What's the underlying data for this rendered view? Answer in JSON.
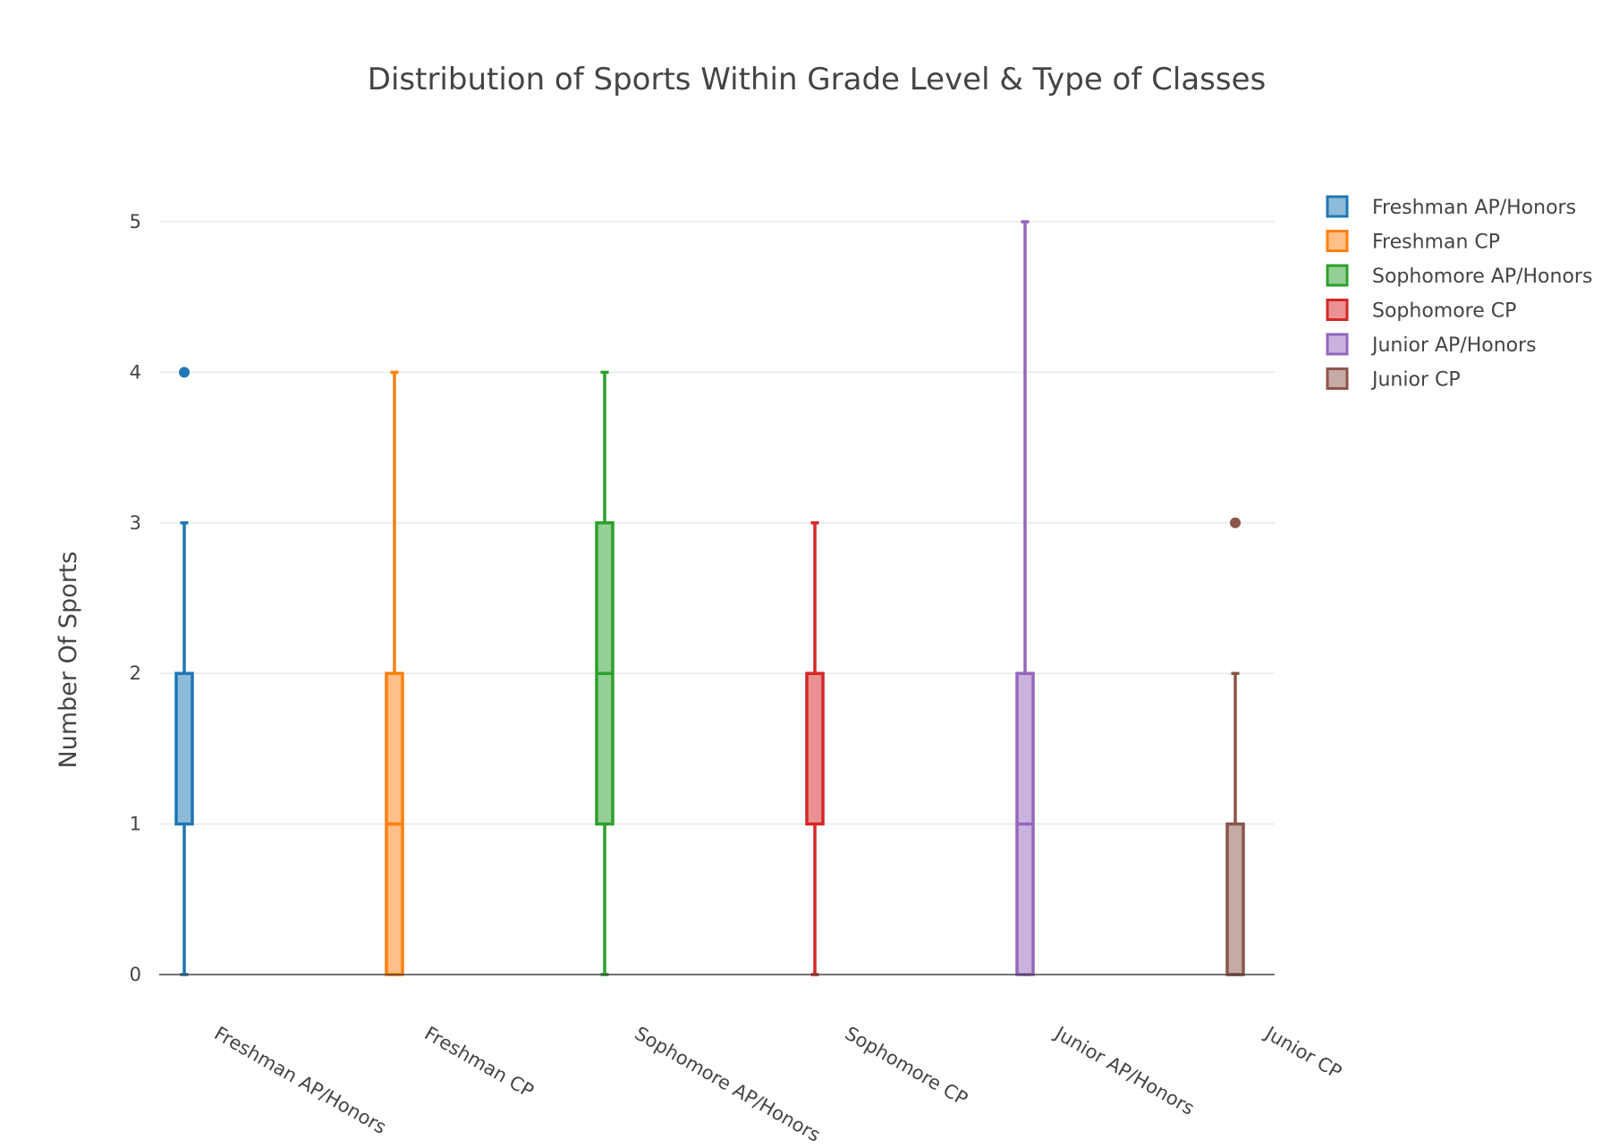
{
  "chart_data": {
    "type": "box",
    "title": "Distribution of Sports Within Grade Level & Type of Classes",
    "xlabel": "",
    "ylabel": "Number Of Sports",
    "ylim": [
      0,
      5
    ],
    "yticks": [
      0,
      1,
      2,
      3,
      4,
      5
    ],
    "grid": true,
    "legend_position": "top-right",
    "categories": [
      "Freshman AP/Honors",
      "Freshman CP",
      "Sophomore AP/Honors",
      "Sophomore CP",
      "Junior AP/Honors",
      "Junior CP"
    ],
    "series": [
      {
        "name": "Freshman AP/Honors",
        "color": "#1f77b4",
        "fill": "#8fbbda",
        "min": 0,
        "q1": 1,
        "median": 2,
        "q3": 2,
        "max": 3,
        "outliers": [
          4
        ]
      },
      {
        "name": "Freshman CP",
        "color": "#ff7f0e",
        "fill": "#ffbf86",
        "min": 0,
        "q1": 0,
        "median": 1,
        "q3": 2,
        "max": 4,
        "outliers": []
      },
      {
        "name": "Sophomore AP/Honors",
        "color": "#2ca02c",
        "fill": "#95cf95",
        "min": 0,
        "q1": 1,
        "median": 2,
        "q3": 3,
        "max": 4,
        "outliers": []
      },
      {
        "name": "Sophomore CP",
        "color": "#d62728",
        "fill": "#ea9293",
        "min": 0,
        "q1": 1,
        "median": 2,
        "q3": 2,
        "max": 3,
        "outliers": []
      },
      {
        "name": "Junior AP/Honors",
        "color": "#9467bd",
        "fill": "#c9b3de",
        "min": 0,
        "q1": 0,
        "median": 1,
        "q3": 2,
        "max": 5,
        "outliers": []
      },
      {
        "name": "Junior CP",
        "color": "#8c564b",
        "fill": "#c5aaa5",
        "min": 0,
        "q1": 0,
        "median": 0,
        "q3": 1,
        "max": 2,
        "outliers": [
          3
        ]
      }
    ]
  }
}
